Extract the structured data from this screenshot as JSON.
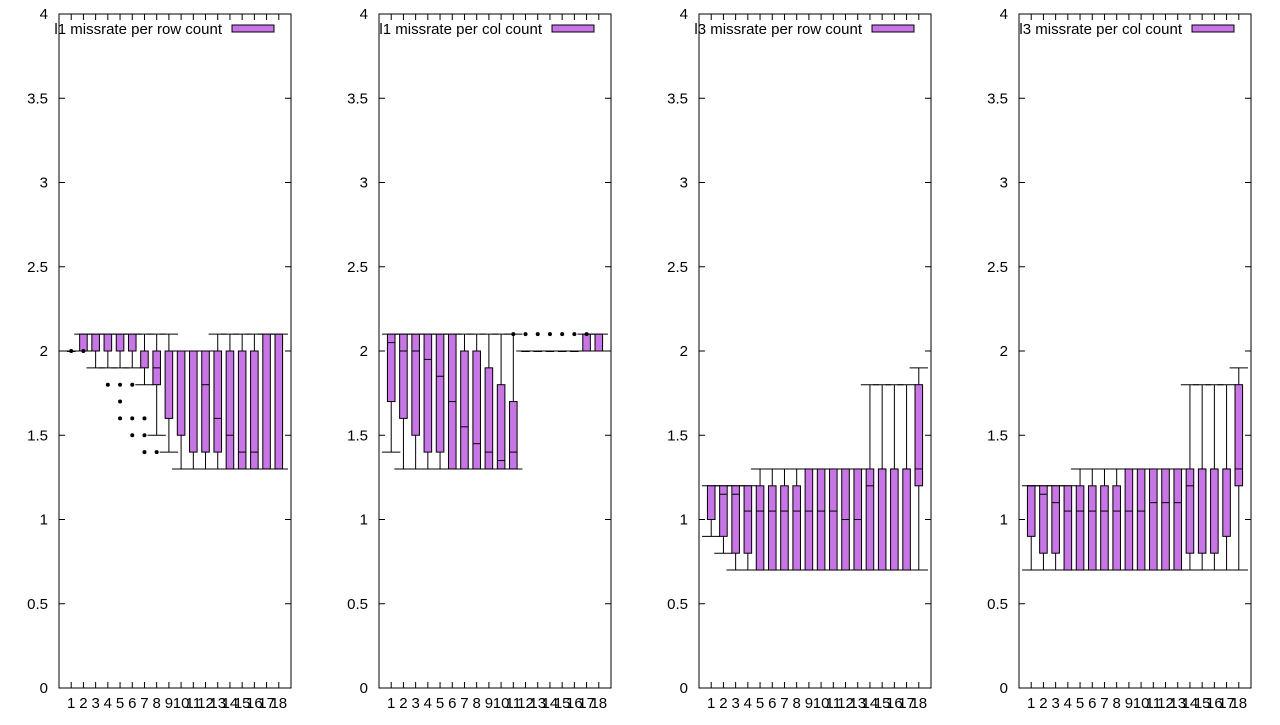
{
  "page": {
    "fill_color": "#c875e6",
    "stroke_color": "#000000"
  },
  "chart_data": [
    {
      "type": "boxplot",
      "title": "",
      "legend": {
        "label": "l1 missrate per row count",
        "position": "top-left"
      },
      "xlabel": "",
      "ylabel": "",
      "ylim": [
        0,
        4
      ],
      "yticks": [
        "0",
        "0.5",
        "1",
        "1.5",
        "2",
        "2.5",
        "3",
        "3.5",
        "4"
      ],
      "categories": [
        "1",
        "2",
        "3",
        "4",
        "5",
        "6",
        "7",
        "8",
        "9",
        "10",
        "11",
        "12",
        "13",
        "14",
        "15",
        "16",
        "17",
        "18"
      ],
      "boxes": [
        {
          "whisker_low": 2.0,
          "q1": 2.0,
          "median": 2.0,
          "q3": 2.0,
          "whisker_high": 2.0,
          "outliers": [
            2.0
          ]
        },
        {
          "whisker_low": 2.0,
          "q1": 2.0,
          "median": 2.0,
          "q3": 2.1,
          "whisker_high": 2.1,
          "outliers": [
            2.0
          ]
        },
        {
          "whisker_low": 1.9,
          "q1": 2.0,
          "median": 2.0,
          "q3": 2.1,
          "whisker_high": 2.1,
          "outliers": []
        },
        {
          "whisker_low": 1.9,
          "q1": 2.0,
          "median": 2.0,
          "q3": 2.1,
          "whisker_high": 2.1,
          "outliers": [
            1.8
          ]
        },
        {
          "whisker_low": 1.9,
          "q1": 2.0,
          "median": 2.0,
          "q3": 2.1,
          "whisker_high": 2.1,
          "outliers": [
            1.8,
            1.7,
            1.6
          ]
        },
        {
          "whisker_low": 1.9,
          "q1": 2.0,
          "median": 2.0,
          "q3": 2.1,
          "whisker_high": 2.1,
          "outliers": [
            1.8,
            1.6,
            1.5
          ]
        },
        {
          "whisker_low": 1.8,
          "q1": 1.9,
          "median": 2.0,
          "q3": 2.0,
          "whisker_high": 2.1,
          "outliers": [
            1.6,
            1.5,
            1.4
          ]
        },
        {
          "whisker_low": 1.5,
          "q1": 1.8,
          "median": 1.9,
          "q3": 2.0,
          "whisker_high": 2.1,
          "outliers": [
            1.4
          ]
        },
        {
          "whisker_low": 1.4,
          "q1": 1.6,
          "median": 2.0,
          "q3": 2.0,
          "whisker_high": 2.1,
          "outliers": []
        },
        {
          "whisker_low": 1.3,
          "q1": 1.5,
          "median": 2.0,
          "q3": 2.0,
          "whisker_high": 2.0,
          "outliers": []
        },
        {
          "whisker_low": 1.3,
          "q1": 1.4,
          "median": 2.0,
          "q3": 2.0,
          "whisker_high": 2.0,
          "outliers": []
        },
        {
          "whisker_low": 1.3,
          "q1": 1.4,
          "median": 1.8,
          "q3": 2.0,
          "whisker_high": 2.0,
          "outliers": []
        },
        {
          "whisker_low": 1.3,
          "q1": 1.4,
          "median": 1.6,
          "q3": 2.0,
          "whisker_high": 2.1,
          "outliers": []
        },
        {
          "whisker_low": 1.3,
          "q1": 1.3,
          "median": 1.5,
          "q3": 2.0,
          "whisker_high": 2.1,
          "outliers": []
        },
        {
          "whisker_low": 1.3,
          "q1": 1.3,
          "median": 1.4,
          "q3": 2.0,
          "whisker_high": 2.1,
          "outliers": []
        },
        {
          "whisker_low": 1.3,
          "q1": 1.3,
          "median": 1.4,
          "q3": 2.0,
          "whisker_high": 2.1,
          "outliers": []
        },
        {
          "whisker_low": 1.3,
          "q1": 1.3,
          "median": 1.3,
          "q3": 2.1,
          "whisker_high": 2.1,
          "outliers": []
        },
        {
          "whisker_low": 1.3,
          "q1": 1.3,
          "median": 1.3,
          "q3": 2.1,
          "whisker_high": 2.1,
          "outliers": []
        }
      ]
    },
    {
      "type": "boxplot",
      "title": "",
      "legend": {
        "label": "l1 missrate per col count",
        "position": "top-left"
      },
      "xlabel": "",
      "ylabel": "",
      "ylim": [
        0,
        4
      ],
      "yticks": [
        "0",
        "0.5",
        "1",
        "1.5",
        "2",
        "2.5",
        "3",
        "3.5",
        "4"
      ],
      "categories": [
        "1",
        "2",
        "3",
        "4",
        "5",
        "6",
        "7",
        "8",
        "9",
        "10",
        "11",
        "12",
        "13",
        "14",
        "15",
        "16",
        "17",
        "18"
      ],
      "boxes": [
        {
          "whisker_low": 1.4,
          "q1": 1.7,
          "median": 2.05,
          "q3": 2.1,
          "whisker_high": 2.1,
          "outliers": []
        },
        {
          "whisker_low": 1.3,
          "q1": 1.6,
          "median": 2.0,
          "q3": 2.1,
          "whisker_high": 2.1,
          "outliers": []
        },
        {
          "whisker_low": 1.3,
          "q1": 1.5,
          "median": 2.0,
          "q3": 2.1,
          "whisker_high": 2.1,
          "outliers": []
        },
        {
          "whisker_low": 1.3,
          "q1": 1.4,
          "median": 1.95,
          "q3": 2.1,
          "whisker_high": 2.1,
          "outliers": []
        },
        {
          "whisker_low": 1.3,
          "q1": 1.4,
          "median": 1.85,
          "q3": 2.1,
          "whisker_high": 2.1,
          "outliers": []
        },
        {
          "whisker_low": 1.3,
          "q1": 1.3,
          "median": 1.7,
          "q3": 2.1,
          "whisker_high": 2.1,
          "outliers": []
        },
        {
          "whisker_low": 1.3,
          "q1": 1.3,
          "median": 1.55,
          "q3": 2.0,
          "whisker_high": 2.1,
          "outliers": []
        },
        {
          "whisker_low": 1.3,
          "q1": 1.3,
          "median": 1.45,
          "q3": 2.0,
          "whisker_high": 2.1,
          "outliers": []
        },
        {
          "whisker_low": 1.3,
          "q1": 1.3,
          "median": 1.4,
          "q3": 1.9,
          "whisker_high": 2.1,
          "outliers": []
        },
        {
          "whisker_low": 1.3,
          "q1": 1.3,
          "median": 1.35,
          "q3": 1.8,
          "whisker_high": 2.1,
          "outliers": []
        },
        {
          "whisker_low": 1.3,
          "q1": 1.3,
          "median": 1.4,
          "q3": 1.7,
          "whisker_high": 2.1,
          "outliers": [
            2.1
          ]
        },
        {
          "whisker_low": 2.0,
          "q1": 2.0,
          "median": 2.0,
          "q3": 2.0,
          "whisker_high": 2.0,
          "outliers": [
            2.1
          ]
        },
        {
          "whisker_low": 2.0,
          "q1": 2.0,
          "median": 2.0,
          "q3": 2.0,
          "whisker_high": 2.0,
          "outliers": [
            2.1
          ]
        },
        {
          "whisker_low": 2.0,
          "q1": 2.0,
          "median": 2.0,
          "q3": 2.0,
          "whisker_high": 2.0,
          "outliers": [
            2.1
          ]
        },
        {
          "whisker_low": 2.0,
          "q1": 2.0,
          "median": 2.0,
          "q3": 2.0,
          "whisker_high": 2.0,
          "outliers": [
            2.1
          ]
        },
        {
          "whisker_low": 2.0,
          "q1": 2.0,
          "median": 2.0,
          "q3": 2.0,
          "whisker_high": 2.0,
          "outliers": [
            2.1
          ]
        },
        {
          "whisker_low": 2.0,
          "q1": 2.0,
          "median": 2.0,
          "q3": 2.1,
          "whisker_high": 2.1,
          "outliers": [
            2.1
          ]
        },
        {
          "whisker_low": 2.0,
          "q1": 2.0,
          "median": 2.0,
          "q3": 2.1,
          "whisker_high": 2.1,
          "outliers": []
        }
      ]
    },
    {
      "type": "boxplot",
      "title": "",
      "legend": {
        "label": "l3 missrate per row count",
        "position": "top-left"
      },
      "xlabel": "",
      "ylabel": "",
      "ylim": [
        0,
        4
      ],
      "yticks": [
        "0",
        "0.5",
        "1",
        "1.5",
        "2",
        "2.5",
        "3",
        "3.5",
        "4"
      ],
      "categories": [
        "1",
        "2",
        "3",
        "4",
        "5",
        "6",
        "7",
        "8",
        "9",
        "10",
        "11",
        "12",
        "13",
        "14",
        "15",
        "16",
        "17",
        "18"
      ],
      "boxes": [
        {
          "whisker_low": 0.9,
          "q1": 1.0,
          "median": 1.0,
          "q3": 1.2,
          "whisker_high": 1.2,
          "outliers": []
        },
        {
          "whisker_low": 0.8,
          "q1": 0.9,
          "median": 1.15,
          "q3": 1.2,
          "whisker_high": 1.2,
          "outliers": []
        },
        {
          "whisker_low": 0.7,
          "q1": 0.8,
          "median": 1.15,
          "q3": 1.2,
          "whisker_high": 1.2,
          "outliers": []
        },
        {
          "whisker_low": 0.7,
          "q1": 0.8,
          "median": 1.05,
          "q3": 1.2,
          "whisker_high": 1.2,
          "outliers": []
        },
        {
          "whisker_low": 0.7,
          "q1": 0.7,
          "median": 1.05,
          "q3": 1.2,
          "whisker_high": 1.3,
          "outliers": []
        },
        {
          "whisker_low": 0.7,
          "q1": 0.7,
          "median": 1.05,
          "q3": 1.2,
          "whisker_high": 1.3,
          "outliers": []
        },
        {
          "whisker_low": 0.7,
          "q1": 0.7,
          "median": 1.05,
          "q3": 1.2,
          "whisker_high": 1.3,
          "outliers": []
        },
        {
          "whisker_low": 0.7,
          "q1": 0.7,
          "median": 1.05,
          "q3": 1.2,
          "whisker_high": 1.3,
          "outliers": []
        },
        {
          "whisker_low": 0.7,
          "q1": 0.7,
          "median": 1.05,
          "q3": 1.3,
          "whisker_high": 1.3,
          "outliers": []
        },
        {
          "whisker_low": 0.7,
          "q1": 0.7,
          "median": 1.05,
          "q3": 1.3,
          "whisker_high": 1.3,
          "outliers": []
        },
        {
          "whisker_low": 0.7,
          "q1": 0.7,
          "median": 1.05,
          "q3": 1.3,
          "whisker_high": 1.3,
          "outliers": []
        },
        {
          "whisker_low": 0.7,
          "q1": 0.7,
          "median": 1.0,
          "q3": 1.3,
          "whisker_high": 1.3,
          "outliers": []
        },
        {
          "whisker_low": 0.7,
          "q1": 0.7,
          "median": 1.0,
          "q3": 1.3,
          "whisker_high": 1.3,
          "outliers": []
        },
        {
          "whisker_low": 0.7,
          "q1": 0.7,
          "median": 1.2,
          "q3": 1.3,
          "whisker_high": 1.8,
          "outliers": []
        },
        {
          "whisker_low": 0.7,
          "q1": 0.7,
          "median": 1.3,
          "q3": 1.3,
          "whisker_high": 1.8,
          "outliers": []
        },
        {
          "whisker_low": 0.7,
          "q1": 0.7,
          "median": 1.3,
          "q3": 1.3,
          "whisker_high": 1.8,
          "outliers": []
        },
        {
          "whisker_low": 0.7,
          "q1": 0.7,
          "median": 1.3,
          "q3": 1.3,
          "whisker_high": 1.8,
          "outliers": []
        },
        {
          "whisker_low": 0.7,
          "q1": 1.2,
          "median": 1.3,
          "q3": 1.8,
          "whisker_high": 1.9,
          "outliers": []
        }
      ]
    },
    {
      "type": "boxplot",
      "title": "",
      "legend": {
        "label": "l3 missrate per col count",
        "position": "top-left"
      },
      "xlabel": "",
      "ylabel": "",
      "ylim": [
        0,
        4
      ],
      "yticks": [
        "0",
        "0.5",
        "1",
        "1.5",
        "2",
        "2.5",
        "3",
        "3.5",
        "4"
      ],
      "categories": [
        "1",
        "2",
        "3",
        "4",
        "5",
        "6",
        "7",
        "8",
        "9",
        "10",
        "11",
        "12",
        "13",
        "14",
        "15",
        "16",
        "17",
        "18"
      ],
      "boxes": [
        {
          "whisker_low": 0.7,
          "q1": 0.9,
          "median": 1.2,
          "q3": 1.2,
          "whisker_high": 1.2,
          "outliers": []
        },
        {
          "whisker_low": 0.7,
          "q1": 0.8,
          "median": 1.15,
          "q3": 1.2,
          "whisker_high": 1.2,
          "outliers": []
        },
        {
          "whisker_low": 0.7,
          "q1": 0.8,
          "median": 1.1,
          "q3": 1.2,
          "whisker_high": 1.2,
          "outliers": []
        },
        {
          "whisker_low": 0.7,
          "q1": 0.7,
          "median": 1.05,
          "q3": 1.2,
          "whisker_high": 1.2,
          "outliers": []
        },
        {
          "whisker_low": 0.7,
          "q1": 0.7,
          "median": 1.05,
          "q3": 1.2,
          "whisker_high": 1.3,
          "outliers": []
        },
        {
          "whisker_low": 0.7,
          "q1": 0.7,
          "median": 1.05,
          "q3": 1.2,
          "whisker_high": 1.3,
          "outliers": []
        },
        {
          "whisker_low": 0.7,
          "q1": 0.7,
          "median": 1.05,
          "q3": 1.2,
          "whisker_high": 1.3,
          "outliers": []
        },
        {
          "whisker_low": 0.7,
          "q1": 0.7,
          "median": 1.05,
          "q3": 1.2,
          "whisker_high": 1.3,
          "outliers": []
        },
        {
          "whisker_low": 0.7,
          "q1": 0.7,
          "median": 1.05,
          "q3": 1.3,
          "whisker_high": 1.3,
          "outliers": []
        },
        {
          "whisker_low": 0.7,
          "q1": 0.7,
          "median": 1.05,
          "q3": 1.3,
          "whisker_high": 1.3,
          "outliers": []
        },
        {
          "whisker_low": 0.7,
          "q1": 0.7,
          "median": 1.1,
          "q3": 1.3,
          "whisker_high": 1.3,
          "outliers": []
        },
        {
          "whisker_low": 0.7,
          "q1": 0.7,
          "median": 1.1,
          "q3": 1.3,
          "whisker_high": 1.3,
          "outliers": []
        },
        {
          "whisker_low": 0.7,
          "q1": 0.7,
          "median": 1.1,
          "q3": 1.3,
          "whisker_high": 1.3,
          "outliers": []
        },
        {
          "whisker_low": 0.7,
          "q1": 0.8,
          "median": 1.2,
          "q3": 1.3,
          "whisker_high": 1.8,
          "outliers": []
        },
        {
          "whisker_low": 0.7,
          "q1": 0.8,
          "median": 1.3,
          "q3": 1.3,
          "whisker_high": 1.8,
          "outliers": []
        },
        {
          "whisker_low": 0.7,
          "q1": 0.8,
          "median": 1.3,
          "q3": 1.3,
          "whisker_high": 1.8,
          "outliers": []
        },
        {
          "whisker_low": 0.7,
          "q1": 0.9,
          "median": 1.3,
          "q3": 1.3,
          "whisker_high": 1.8,
          "outliers": []
        },
        {
          "whisker_low": 0.7,
          "q1": 1.2,
          "median": 1.3,
          "q3": 1.8,
          "whisker_high": 1.9,
          "outliers": []
        }
      ]
    }
  ]
}
